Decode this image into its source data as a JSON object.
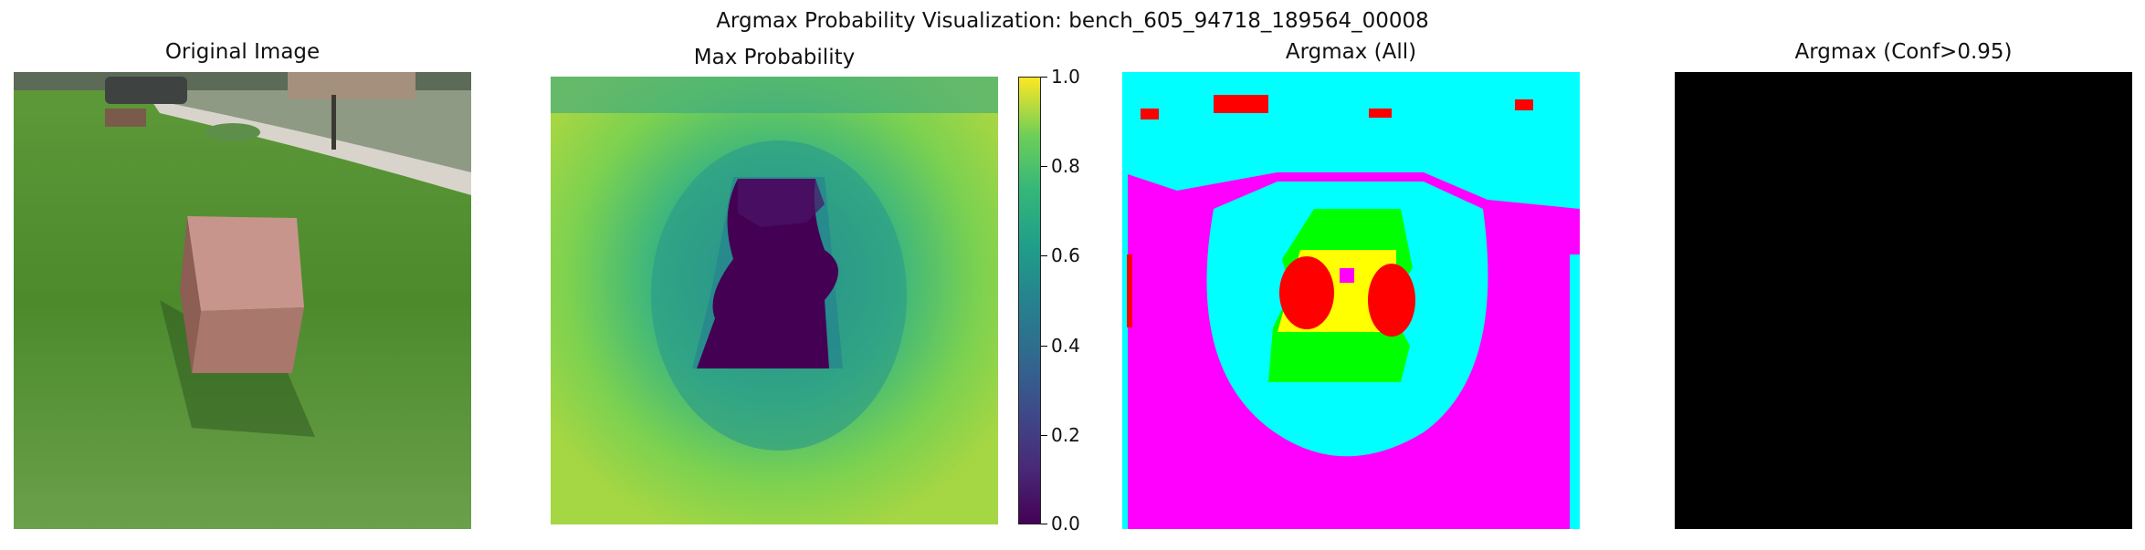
{
  "figure": {
    "title": "Argmax Probability Visualization: bench_605_94718_189564_00008"
  },
  "panels": {
    "original": {
      "title": "Original Image"
    },
    "max_prob": {
      "title": "Max Probability"
    },
    "argmax_all": {
      "title": "Argmax (All)"
    },
    "argmax_conf": {
      "title": "Argmax (Conf>0.95)"
    }
  },
  "colorbar": {
    "colormap": "viridis",
    "range": [
      0.0,
      1.0
    ],
    "ticks": [
      "1.0",
      "0.8",
      "0.6",
      "0.4",
      "0.2",
      "0.0"
    ]
  },
  "colors": {
    "grass": "#4f8a2f",
    "bench": "#b08078",
    "viridis_low": "#440154",
    "viridis_mid": "#21918c",
    "viridis_high": "#fde725",
    "class_magenta": "#ff00ff",
    "class_cyan": "#00ffff",
    "class_green": "#00ff00",
    "class_red": "#ff0000",
    "class_yellow": "#ffff00",
    "class_none": "#000000"
  }
}
